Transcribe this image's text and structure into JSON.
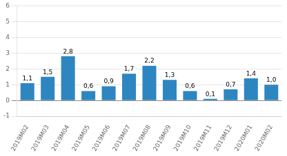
{
  "chart_data": {
    "type": "bar",
    "categories": [
      "2019M02",
      "2019M03",
      "2019M04",
      "2019M05",
      "2019M06",
      "2019M07",
      "2019M08",
      "2019M09",
      "2019M10",
      "2019M11",
      "2019M12",
      "2020M01",
      "2020M02"
    ],
    "values": [
      1.1,
      1.5,
      2.8,
      0.6,
      0.9,
      1.7,
      2.2,
      1.3,
      0.6,
      0.1,
      0.7,
      1.4,
      1.0
    ],
    "value_labels": [
      "1,1",
      "1,5",
      "2,8",
      "0,6",
      "0,9",
      "1,7",
      "2,2",
      "1,3",
      "0,6",
      "0,1",
      "0,7",
      "1,4",
      "1,0"
    ],
    "data_labels": true,
    "color": "#2e86c1",
    "ylim": [
      -1,
      6
    ],
    "yticks": [
      -1,
      0,
      1,
      2,
      3,
      4,
      5,
      6
    ],
    "grid": true
  }
}
